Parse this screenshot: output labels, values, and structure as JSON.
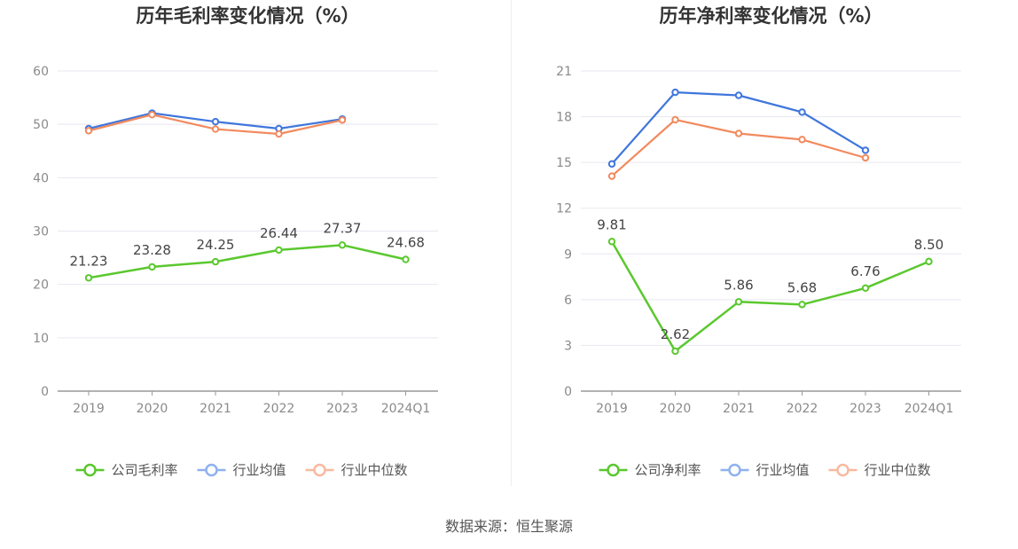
{
  "colors": {
    "company": "#5ac82e",
    "industry_avg": "#3f76dc",
    "industry_median": "#f28a5e",
    "avg_legend": "#8fb1ef",
    "median_legend": "#f8b9a0",
    "grid": "#e6e8f0",
    "axis": "#999999"
  },
  "source": "数据来源：恒生聚源",
  "chart_data": [
    {
      "type": "line",
      "title": "历年毛利率变化情况（%）",
      "categories": [
        "2019",
        "2020",
        "2021",
        "2022",
        "2023",
        "2024Q1"
      ],
      "y_ticks": [
        0,
        10,
        20,
        30,
        40,
        50,
        60
      ],
      "ylim": [
        0,
        60
      ],
      "grid": true,
      "legend_position": "bottom",
      "series": [
        {
          "name": "公司毛利率",
          "key": "company",
          "values": [
            21.23,
            23.28,
            24.25,
            26.44,
            27.37,
            24.68
          ],
          "labels": [
            "21.23",
            "23.28",
            "24.25",
            "26.44",
            "27.37",
            "24.68"
          ]
        },
        {
          "name": "行业均值",
          "key": "industry_avg",
          "values": [
            49.2,
            52.1,
            50.5,
            49.2,
            51.0,
            null
          ]
        },
        {
          "name": "行业中位数",
          "key": "industry_median",
          "values": [
            48.8,
            51.8,
            49.1,
            48.2,
            50.8,
            null
          ]
        }
      ]
    },
    {
      "type": "line",
      "title": "历年净利率变化情况（%）",
      "categories": [
        "2019",
        "2020",
        "2021",
        "2022",
        "2023",
        "2024Q1"
      ],
      "y_ticks": [
        0,
        3,
        6,
        9,
        12,
        15,
        18,
        21
      ],
      "ylim": [
        0,
        21
      ],
      "grid": true,
      "legend_position": "bottom",
      "series": [
        {
          "name": "公司净利率",
          "key": "company",
          "values": [
            9.81,
            2.62,
            5.86,
            5.68,
            6.76,
            8.5
          ],
          "labels": [
            "9.81",
            "2.62",
            "5.86",
            "5.68",
            "6.76",
            "8.50"
          ]
        },
        {
          "name": "行业均值",
          "key": "industry_avg",
          "values": [
            14.9,
            19.6,
            19.4,
            18.3,
            15.8,
            null
          ]
        },
        {
          "name": "行业中位数",
          "key": "industry_median",
          "values": [
            14.1,
            17.8,
            16.9,
            16.5,
            15.3,
            null
          ]
        }
      ]
    }
  ]
}
